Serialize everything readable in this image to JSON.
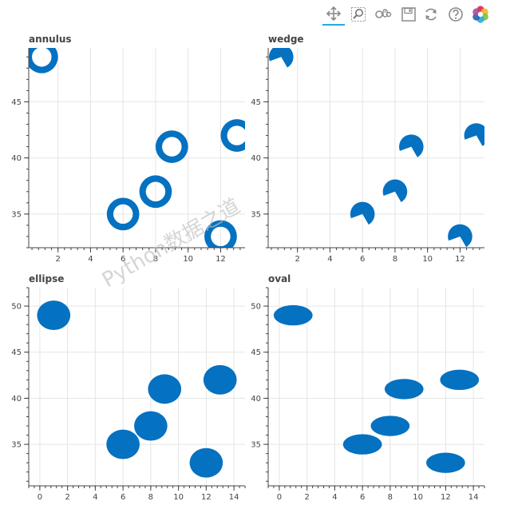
{
  "toolbar": {
    "tools": [
      {
        "name": "pan-tool",
        "icon": "move-arrows-icon",
        "active": true
      },
      {
        "name": "box-zoom-tool",
        "icon": "box-zoom-icon",
        "active": false
      },
      {
        "name": "wheel-zoom-tool",
        "icon": "wheel-zoom-icon",
        "active": false
      },
      {
        "name": "save-tool",
        "icon": "save-icon",
        "active": false
      },
      {
        "name": "reset-tool",
        "icon": "reset-icon",
        "active": false
      },
      {
        "name": "help-tool",
        "icon": "help-icon",
        "active": false
      },
      {
        "name": "bokeh-logo",
        "icon": "bokeh-logo-icon",
        "active": false
      }
    ]
  },
  "watermark": "Python数据之道",
  "colors": {
    "fill": "#0571c1",
    "grid": "#e5e5e5",
    "axis": "#444444"
  },
  "chart_data": [
    {
      "type": "scatter",
      "marker": "annulus",
      "title": "annulus",
      "x": [
        1,
        6,
        8,
        9,
        12,
        13
      ],
      "y": [
        49,
        35,
        37,
        41,
        33,
        42
      ],
      "inner_radius": 0.6,
      "outer_radius": 1.0,
      "xlim": [
        0.2,
        13.5
      ],
      "ylim": [
        32,
        49.8
      ],
      "xticks": [
        2,
        4,
        6,
        8,
        10,
        12
      ],
      "yticks": [
        35,
        40,
        45
      ]
    },
    {
      "type": "scatter",
      "marker": "wedge",
      "title": "wedge",
      "x": [
        1,
        6,
        8,
        9,
        12,
        13
      ],
      "y": [
        49,
        35,
        37,
        41,
        33,
        42
      ],
      "radius": 0.75,
      "start_angle_deg": -60,
      "end_angle_deg": 200,
      "xlim": [
        0.2,
        13.5
      ],
      "ylim": [
        32,
        49.8
      ],
      "xticks": [
        2,
        4,
        6,
        8,
        10,
        12
      ],
      "yticks": [
        35,
        40,
        45
      ]
    },
    {
      "type": "scatter",
      "marker": "ellipse",
      "title": "ellipse",
      "x": [
        1,
        6,
        8,
        9,
        12,
        13
      ],
      "y": [
        49,
        35,
        37,
        41,
        33,
        42
      ],
      "width": 2.4,
      "height": 3.2,
      "xlim": [
        -0.8,
        14.8
      ],
      "ylim": [
        30.5,
        52
      ],
      "xticks": [
        0,
        2,
        4,
        6,
        8,
        10,
        12,
        14
      ],
      "yticks": [
        35,
        40,
        45,
        50
      ]
    },
    {
      "type": "scatter",
      "marker": "oval",
      "title": "oval",
      "x": [
        1,
        6,
        8,
        9,
        12,
        13
      ],
      "y": [
        49,
        35,
        37,
        41,
        33,
        42
      ],
      "width": 2.8,
      "height": 2.2,
      "xlim": [
        -0.8,
        14.8
      ],
      "ylim": [
        30.5,
        52
      ],
      "xticks": [
        0,
        2,
        4,
        6,
        8,
        10,
        12,
        14
      ],
      "yticks": [
        35,
        40,
        45,
        50
      ]
    }
  ]
}
